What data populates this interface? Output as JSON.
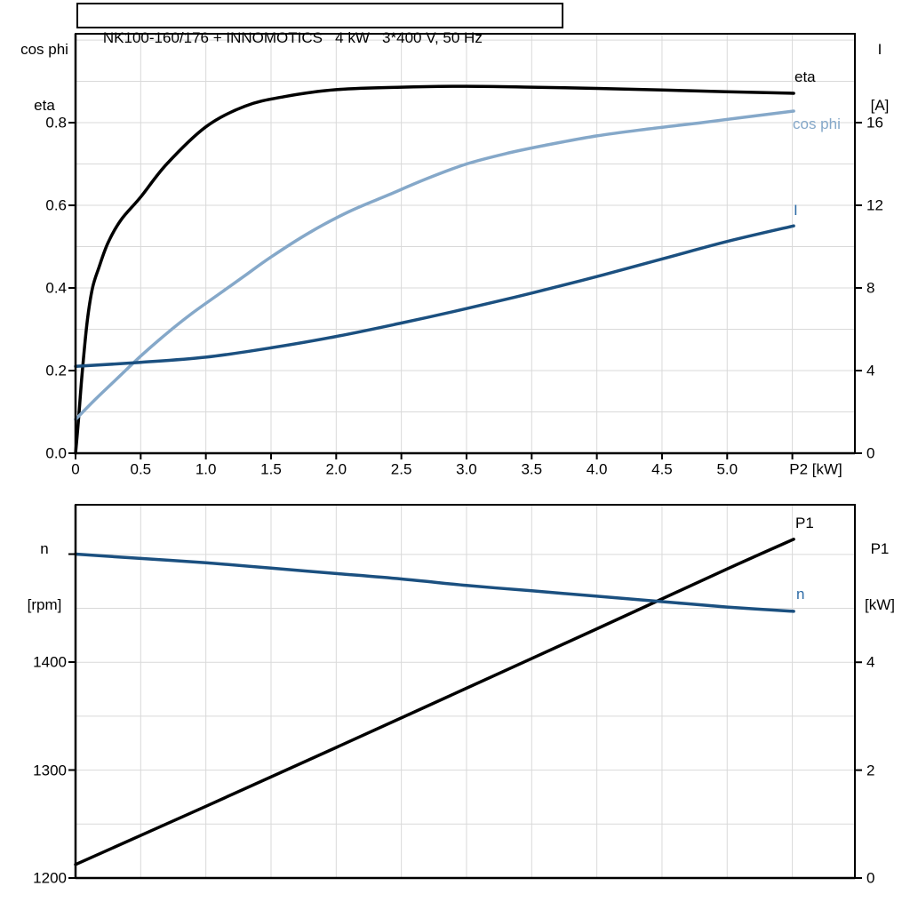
{
  "title": "NK100-160/176 + INNOMOTICS   4 kW   3*400 V, 50 Hz",
  "colors": {
    "curve_black": "#000000",
    "curve_dark_blue": "#1b5080",
    "curve_light_blue": "#85a8c9",
    "label_blue": "#2d6ba6",
    "grid": "#d9d9d9",
    "axis": "#000000",
    "background": "#ffffff"
  },
  "top_chart": {
    "y_left_label": [
      "cos phi",
      "eta"
    ],
    "y_right_label": [
      "I",
      "[A]"
    ],
    "x_label": "P2 [kW]",
    "curve_labels": {
      "eta": "eta",
      "cos_phi": "cos phi",
      "current": "I"
    }
  },
  "bottom_chart": {
    "y_left_label": [
      "n",
      "[rpm]"
    ],
    "y_right_label": [
      "P1",
      "[kW]"
    ],
    "curve_labels": {
      "p1": "P1",
      "n": "n"
    }
  },
  "chart_data": [
    {
      "type": "line",
      "title": "NK100-160/176 + INNOMOTICS 4 kW 3*400 V, 50 Hz",
      "xlabel": "P2 [kW]",
      "xlim": [
        0,
        5.98
      ],
      "x_major_ticks": [
        0,
        0.5,
        1,
        1.5,
        2,
        2.5,
        3,
        3.5,
        4,
        4.5,
        5
      ],
      "x_tick_labels": [
        "0",
        "0.5",
        "1.0",
        "1.5",
        "2.0",
        "2.5",
        "3.0",
        "3.5",
        "4.0",
        "4.5",
        "5.0"
      ],
      "x_extra_ticks": [
        5.5
      ],
      "x_grid_step": 0.5,
      "x_grid_max": 5.5,
      "left_axis": {
        "label": "cos phi / eta",
        "lim": [
          0,
          1.0152
        ],
        "ticks": [
          0,
          0.2,
          0.4,
          0.6,
          0.8
        ],
        "tick_labels": [
          "0.0",
          "0.2",
          "0.4",
          "0.6",
          "0.8"
        ],
        "grid_step": 0.1,
        "grid_max": 1.0
      },
      "right_axis": {
        "label": "I [A]",
        "lim": [
          0,
          20.3
        ],
        "ticks": [
          0,
          4,
          8,
          12,
          16
        ],
        "tick_labels": [
          "0",
          "4",
          "8",
          "12",
          "16"
        ]
      },
      "series": [
        {
          "name": "eta",
          "axis": "left",
          "color": "curve_black",
          "x": [
            0,
            0.02,
            0.05,
            0.09,
            0.13,
            0.18,
            0.25,
            0.35,
            0.5,
            0.7,
            1.0,
            1.3,
            1.6,
            2.0,
            2.5,
            3.0,
            3.5,
            4.0,
            4.5,
            5.0,
            5.51
          ],
          "y": [
            0,
            0.07,
            0.19,
            0.32,
            0.4,
            0.45,
            0.51,
            0.565,
            0.62,
            0.7,
            0.79,
            0.84,
            0.863,
            0.88,
            0.886,
            0.888,
            0.886,
            0.883,
            0.879,
            0.875,
            0.871
          ]
        },
        {
          "name": "cos phi",
          "axis": "left",
          "color": "curve_light_blue",
          "x": [
            0,
            0.15,
            0.3,
            0.5,
            0.7,
            0.9,
            1.1,
            1.3,
            1.5,
            1.8,
            2.1,
            2.4,
            2.7,
            3.0,
            3.3,
            3.6,
            4.0,
            4.4,
            4.8,
            5.1,
            5.51
          ],
          "y": [
            0.082,
            0.13,
            0.175,
            0.235,
            0.29,
            0.34,
            0.385,
            0.43,
            0.475,
            0.535,
            0.585,
            0.625,
            0.665,
            0.7,
            0.725,
            0.745,
            0.768,
            0.785,
            0.8,
            0.812,
            0.828
          ]
        },
        {
          "name": "I",
          "axis": "right",
          "color": "curve_dark_blue",
          "x": [
            0,
            0.5,
            1.0,
            1.5,
            2.0,
            2.5,
            3.0,
            3.5,
            4.0,
            4.5,
            5.0,
            5.51
          ],
          "y": [
            4.2,
            4.4,
            4.65,
            5.1,
            5.65,
            6.3,
            7.0,
            7.75,
            8.55,
            9.4,
            10.25,
            11.0
          ]
        }
      ]
    },
    {
      "type": "line",
      "xlabel": "P2 [kW]",
      "xlim": [
        0,
        5.98
      ],
      "x_grid_step": 0.5,
      "x_grid_max": 5.5,
      "left_axis": {
        "label": "n [rpm]",
        "lim": [
          1200,
          1545.7
        ],
        "ticks": [
          1200,
          1300,
          1400
        ],
        "tick_labels": [
          "1200",
          "1300",
          "1400"
        ],
        "extra_ticks": [
          1500
        ]
      },
      "right_axis": {
        "label": "P1 [kW]",
        "lim": [
          0,
          6.92
        ],
        "ticks": [
          0,
          2,
          4
        ],
        "tick_labels": [
          "0",
          "2",
          "4"
        ],
        "grid_step": 1,
        "grid_max": 6
      },
      "series": [
        {
          "name": "P1",
          "axis": "right",
          "color": "curve_black",
          "x": [
            0,
            1,
            2,
            3,
            4,
            5,
            5.51
          ],
          "y": [
            0.25,
            1.33,
            2.42,
            3.52,
            4.62,
            5.73,
            6.28
          ]
        },
        {
          "name": "n",
          "axis": "left",
          "color": "curve_dark_blue",
          "x": [
            0,
            0.5,
            1,
            1.5,
            2,
            2.5,
            3,
            3.5,
            4,
            4.5,
            5,
            5.51
          ],
          "y": [
            1500,
            1496,
            1492,
            1487,
            1482,
            1477,
            1471,
            1466,
            1461,
            1456,
            1451,
            1447
          ]
        }
      ]
    }
  ]
}
